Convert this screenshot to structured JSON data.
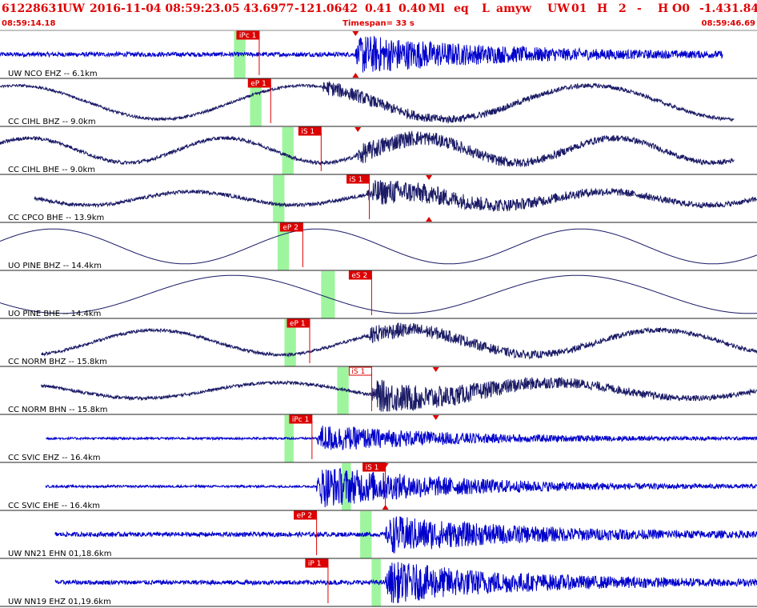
{
  "header": {
    "event_id": "61228631",
    "network": "UW",
    "origin_time": "2016-11-04 08:59:23.05",
    "lat": "43.6977",
    "lon": "-121.0642",
    "mag1": "0.41",
    "mag2": "0.40",
    "mag_type": "Ml",
    "event_type": "eq",
    "flag": "L",
    "author": "amyw",
    "agency": "UW",
    "version": "01",
    "quality": "H",
    "count": "2",
    "dash": "-",
    "h_code": "H",
    "o_code": "O0",
    "val1": "-1.43",
    "val2": "1.84"
  },
  "time_bar": {
    "start": "08:59:14.18",
    "timespan": "Timespan=  33 s",
    "end": "08:59:46.69"
  },
  "colors": {
    "header_red": "#e00000",
    "trace_blue": "#0000cc",
    "trace_navy": "#1a1a66",
    "pick_red": "#dd0000",
    "band_green": "#9ef59e"
  },
  "chart_data": {
    "type": "seismogram",
    "time_range_s": [
      0,
      33
    ],
    "traces": [
      {
        "label": "UW NCO EHZ -- 6.1km",
        "color": "blue",
        "start": 0.0,
        "end": 31.5,
        "noise": 0.1,
        "onset": 15.5,
        "peak": 0.85,
        "wave_amp": 0,
        "wave_period": 10,
        "wave_phase": 0,
        "picks": [
          {
            "label": "iPc 1",
            "t": 11.3,
            "filled": true
          }
        ],
        "s_marker": 15.5,
        "s_marker_bottom": true,
        "band": [
          10.2,
          10.7
        ]
      },
      {
        "label": "CC CIHL BHZ -- 9.0km",
        "color": "navy",
        "start": 0.0,
        "end": 32.0,
        "noise": 0.06,
        "onset": 14.0,
        "peak": 0.3,
        "wave_amp": 0.75,
        "wave_period": 12.5,
        "wave_phase": 1.2,
        "picks": [
          {
            "label": "eP 1",
            "t": 11.8,
            "filled": true
          }
        ],
        "s_marker": null,
        "s_marker_bottom": false,
        "band": [
          10.9,
          11.4
        ]
      },
      {
        "label": "CC CIHL BHE -- 9.0km",
        "color": "navy",
        "start": 0.0,
        "end": 32.0,
        "noise": 0.08,
        "onset": 15.5,
        "peak": 0.4,
        "wave_amp": 0.55,
        "wave_period": 8.5,
        "wave_phase": 0.6,
        "picks": [
          {
            "label": "iS 1",
            "t": 14.0,
            "filled": true
          }
        ],
        "s_marker": 15.6,
        "s_marker_bottom": false,
        "band": [
          12.3,
          12.8
        ]
      },
      {
        "label": "CC CPCO BHE -- 13.9km",
        "color": "navy",
        "start": 1.5,
        "end": 33.0,
        "noise": 0.08,
        "onset": 16.0,
        "peak": 0.55,
        "wave_amp": 0.3,
        "wave_period": 9.0,
        "wave_phase": 2.0,
        "picks": [
          {
            "label": "iS 1",
            "t": 16.1,
            "filled": true
          }
        ],
        "s_marker": 18.7,
        "s_marker_bottom": true,
        "band": [
          11.9,
          12.4
        ]
      },
      {
        "label": "UO PINE BHZ -- 14.4km",
        "color": "navy",
        "start": 0.0,
        "end": 33.0,
        "noise": 0.0,
        "onset": 99,
        "peak": 0.0,
        "wave_amp": 0.78,
        "wave_period": 11.5,
        "wave_phase": 0.3,
        "picks": [
          {
            "label": "eP 2",
            "t": 13.2,
            "filled": true
          }
        ],
        "s_marker": null,
        "s_marker_bottom": false,
        "band": [
          12.1,
          12.6
        ]
      },
      {
        "label": "UO PINE BHE -- 14.4km",
        "color": "navy",
        "start": 0.0,
        "end": 33.0,
        "noise": 0.0,
        "onset": 99,
        "peak": 0.0,
        "wave_amp": 0.85,
        "wave_period": 15.0,
        "wave_phase": 3.6,
        "picks": [
          {
            "label": "eS 2",
            "t": 16.2,
            "filled": true
          }
        ],
        "s_marker": null,
        "s_marker_bottom": false,
        "band": [
          14.0,
          14.6
        ]
      },
      {
        "label": "CC NORM BHZ -- 15.8km",
        "color": "navy",
        "start": 1.8,
        "end": 33.0,
        "noise": 0.07,
        "onset": 16.0,
        "peak": 0.35,
        "wave_amp": 0.55,
        "wave_period": 11.0,
        "wave_phase": 4.0,
        "picks": [
          {
            "label": "eP 1",
            "t": 13.5,
            "filled": true
          }
        ],
        "s_marker": null,
        "s_marker_bottom": false,
        "band": [
          12.4,
          12.9
        ]
      },
      {
        "label": "CC NORM BHN -- 15.8km",
        "color": "navy",
        "start": 1.8,
        "end": 33.0,
        "noise": 0.07,
        "onset": 16.2,
        "peak": 0.7,
        "wave_amp": 0.35,
        "wave_period": 12.0,
        "wave_phase": 1.5,
        "picks": [
          {
            "label": "iS 1",
            "t": 16.2,
            "filled": false
          }
        ],
        "s_marker": 19.0,
        "s_marker_bottom": false,
        "band": [
          14.7,
          15.2
        ]
      },
      {
        "label": "CC SVIC EHZ -- 16.4km",
        "color": "blue",
        "start": 2.0,
        "end": 33.0,
        "noise": 0.05,
        "onset": 13.8,
        "peak": 0.6,
        "wave_amp": 0,
        "wave_period": 10,
        "wave_phase": 0,
        "picks": [
          {
            "label": "iPc 1",
            "t": 13.6,
            "filled": true
          }
        ],
        "s_marker": 19.0,
        "s_marker_bottom": false,
        "band": [
          12.4,
          12.8
        ]
      },
      {
        "label": "CC SVIC EHE -- 16.4km",
        "color": "blue",
        "start": 2.0,
        "end": 33.0,
        "noise": 0.05,
        "onset": 13.8,
        "peak": 0.95,
        "wave_amp": 0,
        "wave_period": 10,
        "wave_phase": 0,
        "picks": [
          {
            "label": "iS 1",
            "t": 16.8,
            "filled": true
          }
        ],
        "s_marker": 16.8,
        "s_marker_bottom": true,
        "band": [
          14.9,
          15.3
        ]
      },
      {
        "label": "UW NN21 EHN 01,18.6km",
        "color": "blue",
        "start": 2.4,
        "end": 33.0,
        "noise": 0.1,
        "onset": 16.8,
        "peak": 0.8,
        "wave_amp": 0,
        "wave_period": 10,
        "wave_phase": 0,
        "picks": [
          {
            "label": "eP 2",
            "t": 13.8,
            "filled": true
          }
        ],
        "s_marker": null,
        "s_marker_bottom": false,
        "band": [
          15.7,
          16.2
        ]
      },
      {
        "label": "UW NN19 EHZ 01,19.6km",
        "color": "blue",
        "start": 2.4,
        "end": 33.0,
        "noise": 0.1,
        "onset": 16.8,
        "peak": 0.9,
        "wave_amp": 0,
        "wave_period": 10,
        "wave_phase": 0,
        "picks": [
          {
            "label": "iP 1",
            "t": 14.3,
            "filled": true
          }
        ],
        "s_marker": null,
        "s_marker_bottom": false,
        "band": [
          16.2,
          16.6
        ]
      }
    ]
  }
}
